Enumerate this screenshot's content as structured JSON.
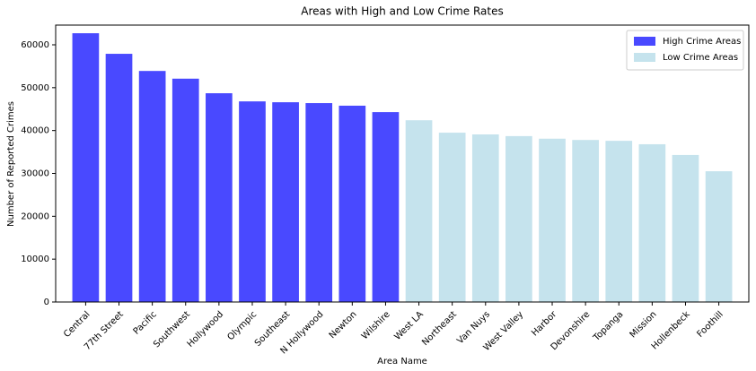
{
  "chart_data": {
    "type": "bar",
    "title": "Areas with High and Low Crime Rates",
    "x_label": "Area Name",
    "y_label": "Number of Reported Crimes",
    "categories": [
      "Central",
      "77th Street",
      "Pacific",
      "Southwest",
      "Hollywood",
      "Olympic",
      "Southeast",
      "N Hollywood",
      "Newton",
      "Wilshire",
      "West LA",
      "Northeast",
      "Van Nuys",
      "West Valley",
      "Harbor",
      "Devonshire",
      "Topanga",
      "Mission",
      "Hollenbeck",
      "Foothill"
    ],
    "series": [
      {
        "name": "High Crime Areas",
        "color": "#4949ff",
        "values": [
          62700,
          57900,
          53900,
          52100,
          48700,
          46800,
          46600,
          46400,
          45800,
          44300,
          null,
          null,
          null,
          null,
          null,
          null,
          null,
          null,
          null,
          null
        ]
      },
      {
        "name": "Low Crime Areas",
        "color": "#c5e3ed",
        "values": [
          null,
          null,
          null,
          null,
          null,
          null,
          null,
          null,
          null,
          null,
          42400,
          39500,
          39100,
          38700,
          38100,
          37800,
          37600,
          36800,
          34300,
          30500
        ]
      }
    ],
    "ylim": [
      0,
      64600
    ],
    "yticks": [
      0,
      10000,
      20000,
      30000,
      40000,
      50000,
      60000
    ],
    "legend": "upper right"
  }
}
